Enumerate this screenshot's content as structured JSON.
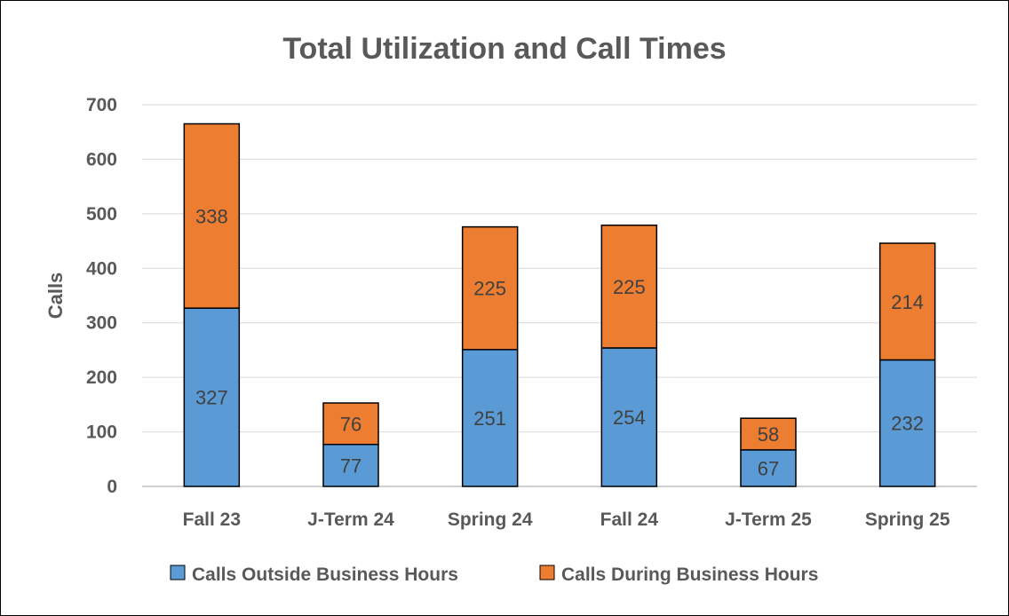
{
  "chart_data": {
    "type": "bar",
    "stacked": true,
    "title": "Total Utilization and Call Times",
    "xlabel": "",
    "ylabel": "Calls",
    "ylim": [
      0,
      700
    ],
    "yticks": [
      0,
      100,
      200,
      300,
      400,
      500,
      600,
      700
    ],
    "grid": true,
    "legend_position": "bottom",
    "categories": [
      "Fall 23",
      "J-Term 24",
      "Spring 24",
      "Fall 24",
      "J-Term 25",
      "Spring 25"
    ],
    "series": [
      {
        "name": "Calls Outside Business Hours",
        "color": "#5B9BD5",
        "values": [
          327,
          77,
          251,
          254,
          67,
          232
        ]
      },
      {
        "name": "Calls During Business Hours",
        "color": "#ED7D31",
        "values": [
          338,
          76,
          225,
          225,
          58,
          214
        ]
      }
    ]
  }
}
